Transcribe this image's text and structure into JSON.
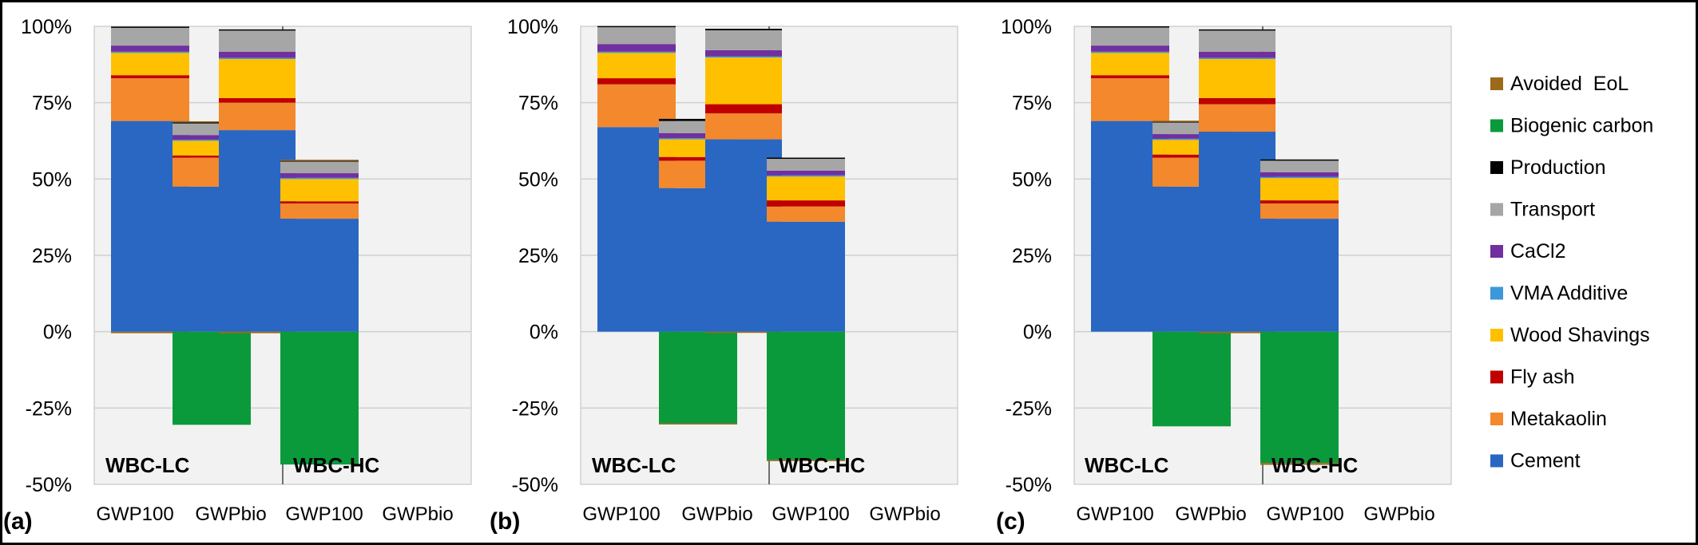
{
  "chart_data": [
    {
      "type": "bar",
      "stacked": true,
      "panel_label": "(a)",
      "categories": [
        "GWP100",
        "GWPbio",
        "GWP100",
        "GWPbio"
      ],
      "groups": [
        {
          "label": "WBC-LC",
          "categories": [
            0,
            1
          ]
        },
        {
          "label": "WBC-HC",
          "categories": [
            2,
            3
          ]
        }
      ],
      "ylim": [
        -0.5,
        1.0
      ],
      "yticks": [
        "100%",
        "75%",
        "50%",
        "25%",
        "0%",
        "-25%",
        "-50%"
      ],
      "grid": true,
      "series": [
        {
          "name": "Cement",
          "color": "#2967c2",
          "values": [
            0.69,
            0.475,
            0.66,
            0.37
          ]
        },
        {
          "name": "Metakaolin",
          "color": "#f3882c",
          "values": [
            0.14,
            0.095,
            0.09,
            0.05
          ]
        },
        {
          "name": "Fly ash",
          "color": "#c00000",
          "values": [
            0.01,
            0.007,
            0.015,
            0.007
          ]
        },
        {
          "name": "Wood Shavings",
          "color": "#ffc000",
          "values": [
            0.075,
            0.05,
            0.13,
            0.075
          ]
        },
        {
          "name": "VMA Additive",
          "color": "#3d97db",
          "values": [
            0.002,
            0.002,
            0.002,
            0.002
          ]
        },
        {
          "name": "CaCl2",
          "color": "#7030a0",
          "values": [
            0.02,
            0.015,
            0.02,
            0.015
          ]
        },
        {
          "name": "Transport",
          "color": "#a6a6a6",
          "values": [
            0.06,
            0.04,
            0.07,
            0.04
          ]
        },
        {
          "name": "Production",
          "color": "#000000",
          "values": [
            0.002,
            0.002,
            0.003,
            0.002
          ]
        },
        {
          "name": "Biogenic carbon",
          "color": "#0b9a3b",
          "values": [
            0,
            -0.305,
            0,
            -0.435
          ]
        },
        {
          "name": "Avoided  EoL",
          "color": "#9c6a1a",
          "values": [
            -0.005,
            0.003,
            -0.005,
            0.002
          ]
        }
      ]
    },
    {
      "type": "bar",
      "stacked": true,
      "panel_label": "(b)",
      "categories": [
        "GWP100",
        "GWPbio",
        "GWP100",
        "GWPbio"
      ],
      "groups": [
        {
          "label": "WBC-LC",
          "categories": [
            0,
            1
          ]
        },
        {
          "label": "WBC-HC",
          "categories": [
            2,
            3
          ]
        }
      ],
      "ylim": [
        -0.5,
        1.0
      ],
      "yticks": [
        "100%",
        "75%",
        "50%",
        "25%",
        "0%",
        "-25%",
        "-50%"
      ],
      "grid": true,
      "series": [
        {
          "name": "Cement",
          "color": "#2967c2",
          "values": [
            0.67,
            0.47,
            0.63,
            0.36
          ]
        },
        {
          "name": "Metakaolin",
          "color": "#f3882c",
          "values": [
            0.14,
            0.09,
            0.085,
            0.05
          ]
        },
        {
          "name": "Fly ash",
          "color": "#c00000",
          "values": [
            0.02,
            0.012,
            0.03,
            0.02
          ]
        },
        {
          "name": "Wood Shavings",
          "color": "#ffc000",
          "values": [
            0.085,
            0.06,
            0.155,
            0.08
          ]
        },
        {
          "name": "VMA Additive",
          "color": "#3d97db",
          "values": [
            0.002,
            0.002,
            0.002,
            0.002
          ]
        },
        {
          "name": "CaCl2",
          "color": "#7030a0",
          "values": [
            0.025,
            0.016,
            0.02,
            0.015
          ]
        },
        {
          "name": "Transport",
          "color": "#a6a6a6",
          "values": [
            0.055,
            0.04,
            0.065,
            0.04
          ]
        },
        {
          "name": "Production",
          "color": "#000000",
          "values": [
            0.004,
            0.007,
            0.005,
            0.003
          ]
        },
        {
          "name": "Biogenic carbon",
          "color": "#0b9a3b",
          "values": [
            0,
            -0.3,
            0,
            -0.42
          ]
        },
        {
          "name": "Avoided  EoL",
          "color": "#9c6a1a",
          "values": [
            0,
            -0.003,
            -0.003,
            -0.003
          ]
        }
      ]
    },
    {
      "type": "bar",
      "stacked": true,
      "panel_label": "(c)",
      "categories": [
        "GWP100",
        "GWPbio",
        "GWP100",
        "GWPbio"
      ],
      "groups": [
        {
          "label": "WBC-LC",
          "categories": [
            0,
            1
          ]
        },
        {
          "label": "WBC-HC",
          "categories": [
            2,
            3
          ]
        }
      ],
      "ylim": [
        -0.5,
        1.0
      ],
      "yticks": [
        "100%",
        "75%",
        "50%",
        "25%",
        "0%",
        "-25%",
        "-50%"
      ],
      "grid": true,
      "series": [
        {
          "name": "Cement",
          "color": "#2967c2",
          "values": [
            0.69,
            0.475,
            0.655,
            0.37
          ]
        },
        {
          "name": "Metakaolin",
          "color": "#f3882c",
          "values": [
            0.14,
            0.095,
            0.09,
            0.05
          ]
        },
        {
          "name": "Fly ash",
          "color": "#c00000",
          "values": [
            0.01,
            0.01,
            0.02,
            0.01
          ]
        },
        {
          "name": "Wood Shavings",
          "color": "#ffc000",
          "values": [
            0.075,
            0.05,
            0.13,
            0.075
          ]
        },
        {
          "name": "VMA Additive",
          "color": "#3d97db",
          "values": [
            0.002,
            0.002,
            0.002,
            0.002
          ]
        },
        {
          "name": "CaCl2",
          "color": "#7030a0",
          "values": [
            0.02,
            0.015,
            0.02,
            0.015
          ]
        },
        {
          "name": "Transport",
          "color": "#a6a6a6",
          "values": [
            0.06,
            0.04,
            0.07,
            0.04
          ]
        },
        {
          "name": "Production",
          "color": "#000000",
          "values": [
            0.003,
            0.002,
            0.003,
            0.002
          ]
        },
        {
          "name": "Biogenic carbon",
          "color": "#0b9a3b",
          "values": [
            0,
            -0.31,
            0,
            -0.43
          ]
        },
        {
          "name": "Avoided  EoL",
          "color": "#9c6a1a",
          "values": [
            0,
            0.002,
            -0.005,
            -0.006
          ]
        }
      ]
    }
  ],
  "legend": {
    "placement": "right",
    "items": [
      {
        "name": "Avoided  EoL",
        "color": "#9c6a1a"
      },
      {
        "name": "Biogenic carbon",
        "color": "#0b9a3b"
      },
      {
        "name": "Production",
        "color": "#000000"
      },
      {
        "name": "Transport",
        "color": "#a6a6a6"
      },
      {
        "name": "CaCl2",
        "color": "#7030a0"
      },
      {
        "name": "VMA Additive",
        "color": "#3d97db"
      },
      {
        "name": "Wood Shavings",
        "color": "#ffc000"
      },
      {
        "name": "Fly ash",
        "color": "#c00000"
      },
      {
        "name": "Metakaolin",
        "color": "#f3882c"
      },
      {
        "name": "Cement",
        "color": "#2967c2"
      }
    ]
  }
}
